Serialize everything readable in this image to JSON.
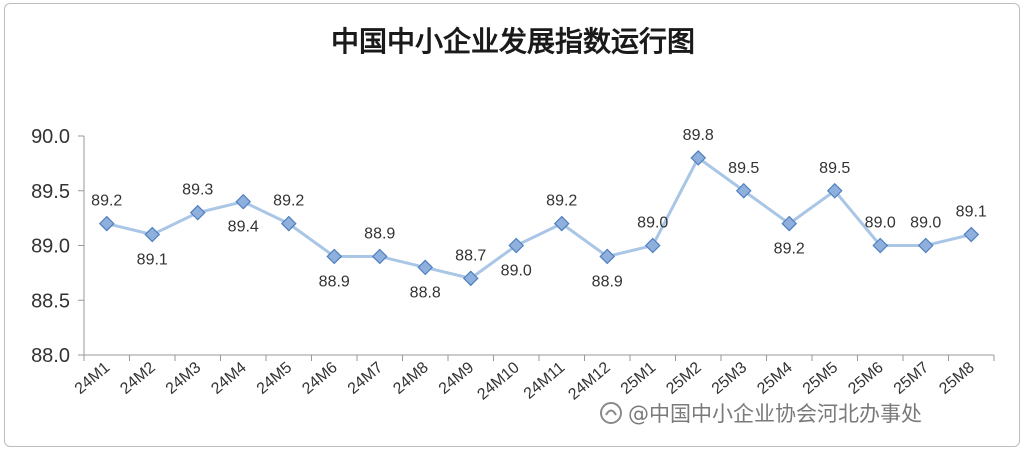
{
  "chart_data": {
    "type": "line",
    "title": "中国中小企业发展指数运行图",
    "categories": [
      "24M1",
      "24M2",
      "24M3",
      "24M4",
      "24M5",
      "24M6",
      "24M7",
      "24M8",
      "24M9",
      "24M10",
      "24M11",
      "24M12",
      "25M1",
      "25M2",
      "25M3",
      "25M4",
      "25M5",
      "25M6",
      "25M7",
      "25M8"
    ],
    "values": [
      89.2,
      89.1,
      89.3,
      89.4,
      89.2,
      88.9,
      88.9,
      88.8,
      88.7,
      89.0,
      89.2,
      88.9,
      89.0,
      89.8,
      89.5,
      89.2,
      89.5,
      89.0,
      89.0,
      89.1
    ],
    "data_labels": [
      "89.2",
      "89.1",
      "89.3",
      "89.4",
      "89.2",
      "88.9",
      "88.9",
      "88.8",
      "88.7",
      "89.0",
      "89.2",
      "88.9",
      "89.0",
      "89.8",
      "89.5",
      "89.2",
      "89.5",
      "89.0",
      "89.0",
      "89.1"
    ],
    "y_ticks": [
      "88.0",
      "88.5",
      "89.0",
      "89.5",
      "90.0"
    ],
    "ylim": [
      88.0,
      90.0
    ],
    "xlabel": "",
    "ylabel": "",
    "grid": false,
    "legend": "none",
    "colors": {
      "line": "#a9c6e6",
      "marker_fill": "#8fb0dc",
      "marker_stroke": "#4f7fbf",
      "axis": "#999999"
    }
  },
  "watermark": "头条 @中国中小企业协会河北办事处"
}
